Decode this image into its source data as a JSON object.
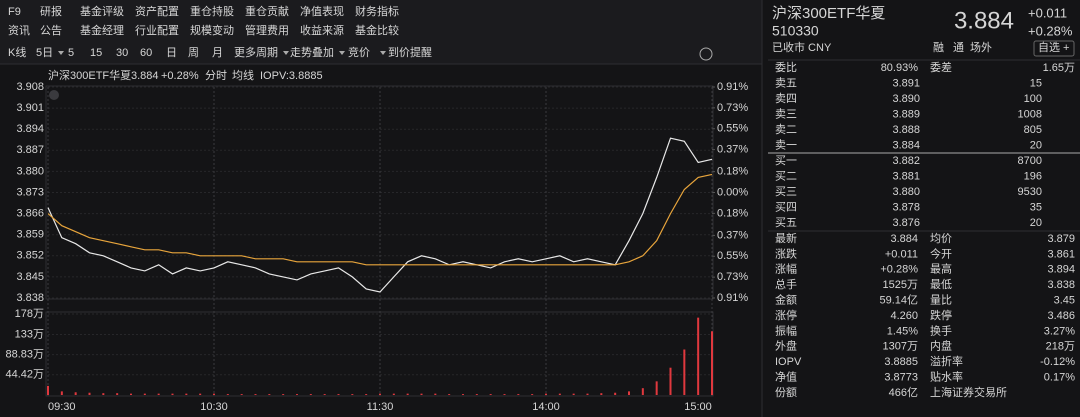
{
  "menu": {
    "row1": [
      "F9",
      "研报",
      "基金评级",
      "资产配置",
      "重仓持股",
      "重仓贡献",
      "净值表现",
      "财务指标"
    ],
    "row2": [
      "资讯",
      "公告",
      "基金经理",
      "行业配置",
      "规模变动",
      "管理费用",
      "收益来源",
      "基金比较"
    ]
  },
  "toolbar": [
    "K线",
    "5日",
    "5",
    "15",
    "30",
    "60",
    "日",
    "周",
    "月",
    "更多周期",
    "走势叠加",
    "竞价",
    "到价提醒"
  ],
  "chart_header": {
    "name": "沪深300ETF华夏",
    "price": "3.884",
    "change": "+0.28%",
    "mode": "分时",
    "iopv": "IOPV:3.8885"
  },
  "chart_data": [
    {
      "type": "line",
      "x": [
        0,
        5,
        10,
        15,
        20,
        25,
        30,
        35,
        40,
        45,
        50,
        55,
        60,
        65,
        70,
        75,
        80,
        85,
        90,
        95,
        100,
        105,
        110,
        115,
        120,
        125,
        130,
        135,
        140,
        145,
        150,
        155,
        160,
        165,
        170,
        175,
        180,
        185,
        190,
        195,
        200,
        205,
        210,
        215,
        220,
        225,
        230,
        235,
        240
      ],
      "xlim": [
        0,
        240
      ],
      "xticks": [
        {
          "value": 0,
          "label": "09:30"
        },
        {
          "value": 60,
          "label": "10:30"
        },
        {
          "value": 120,
          "label": "11:30"
        },
        {
          "value": 180,
          "label": "14:00"
        },
        {
          "value": 240,
          "label": "15:00"
        }
      ],
      "ylim": [
        3.838,
        3.908
      ],
      "yticks": [
        3.838,
        3.845,
        3.852,
        3.859,
        3.866,
        3.873,
        {
          "value": 3.88,
          "label": "3.880"
        },
        3.887,
        3.894,
        3.901,
        3.908
      ],
      "y2lim": [
        -0.91,
        0.91
      ],
      "y2ticks": [
        {
          "value": -0.91,
          "label": "0.91%"
        },
        {
          "value": -0.73,
          "label": "0.73%"
        },
        {
          "value": -0.55,
          "label": "0.55%"
        },
        {
          "value": -0.37,
          "label": "0.37%"
        },
        {
          "value": -0.18,
          "label": "0.18%"
        },
        {
          "value": 0,
          "label": "0.00%"
        },
        {
          "value": 0.18,
          "label": "0.18%"
        },
        {
          "value": 0.37,
          "label": "0.37%"
        },
        {
          "value": 0.55,
          "label": "0.55%"
        },
        {
          "value": 0.73,
          "label": "0.73%"
        },
        {
          "value": 0.91,
          "label": "0.91%"
        }
      ],
      "series": [
        {
          "color": "#e8e8e8",
          "values": [
            3.868,
            3.858,
            3.856,
            3.853,
            3.852,
            3.85,
            3.848,
            3.847,
            3.849,
            3.846,
            3.848,
            3.847,
            3.848,
            3.85,
            3.849,
            3.848,
            3.846,
            3.845,
            3.844,
            3.846,
            3.847,
            3.848,
            3.845,
            3.841,
            3.84,
            3.845,
            3.85,
            3.852,
            3.851,
            3.849,
            3.85,
            3.849,
            3.848,
            3.85,
            3.851,
            3.85,
            3.851,
            3.852,
            3.85,
            3.851,
            3.85,
            3.849,
            3.857,
            3.866,
            3.878,
            3.891,
            3.89,
            3.883,
            3.884
          ]
        },
        {
          "name": "均线",
          "color": "#e8a53c",
          "values": [
            3.866,
            3.862,
            3.86,
            3.858,
            3.857,
            3.856,
            3.855,
            3.854,
            3.854,
            3.853,
            3.853,
            3.852,
            3.852,
            3.852,
            3.852,
            3.851,
            3.851,
            3.851,
            3.85,
            3.85,
            3.85,
            3.85,
            3.85,
            3.849,
            3.849,
            3.849,
            3.849,
            3.849,
            3.849,
            3.849,
            3.849,
            3.849,
            3.849,
            3.849,
            3.849,
            3.849,
            3.849,
            3.849,
            3.849,
            3.849,
            3.849,
            3.849,
            3.85,
            3.852,
            3.857,
            3.866,
            3.874,
            3.878,
            3.879
          ]
        }
      ]
    },
    {
      "type": "bar",
      "x": [
        0,
        5,
        10,
        15,
        20,
        25,
        30,
        35,
        40,
        45,
        50,
        55,
        60,
        65,
        70,
        75,
        80,
        85,
        90,
        95,
        100,
        105,
        110,
        115,
        120,
        125,
        130,
        135,
        140,
        145,
        150,
        155,
        160,
        165,
        170,
        175,
        180,
        185,
        190,
        195,
        200,
        205,
        210,
        215,
        220,
        225,
        230,
        235,
        240
      ],
      "xlim": [
        0,
        240
      ],
      "ylim": [
        0,
        178
      ],
      "yticks": [
        {
          "value": 44.42,
          "label": "44.42万"
        },
        {
          "value": 88.83,
          "label": "88.83万"
        },
        {
          "value": 133,
          "label": "133万"
        },
        {
          "value": 178,
          "label": "178万"
        }
      ],
      "color": "#e0383e",
      "values": [
        20,
        8,
        6,
        5,
        4,
        4,
        3,
        3,
        3,
        3,
        3,
        3,
        3,
        2,
        2,
        2,
        2,
        2,
        2,
        2,
        2,
        2,
        2,
        2,
        3,
        3,
        3,
        3,
        3,
        2,
        2,
        2,
        2,
        2,
        2,
        2,
        3,
        3,
        3,
        3,
        4,
        5,
        8,
        15,
        30,
        60,
        100,
        170,
        140
      ]
    }
  ],
  "quote": {
    "name": "沪深300ETF华夏",
    "code": "510330",
    "status": "已收市 CNY",
    "price": "3.884",
    "change": "+0.011",
    "pct": "+0.28%",
    "tags": [
      "融",
      "通",
      "场外",
      "自选 +"
    ],
    "ratio": [
      "委比",
      "80.93%",
      "委差",
      "1.65万"
    ],
    "sells": [
      [
        "卖五",
        "3.891",
        "15"
      ],
      [
        "卖四",
        "3.890",
        "100"
      ],
      [
        "卖三",
        "3.889",
        "1008"
      ],
      [
        "卖二",
        "3.888",
        "805"
      ],
      [
        "卖一",
        "3.884",
        "20"
      ]
    ],
    "buys": [
      [
        "买一",
        "3.882",
        "8700"
      ],
      [
        "买二",
        "3.881",
        "196"
      ],
      [
        "买三",
        "3.880",
        "9530"
      ],
      [
        "买四",
        "3.878",
        "35"
      ],
      [
        "买五",
        "3.876",
        "20"
      ]
    ],
    "stats": [
      [
        "最新",
        "3.884",
        "均价",
        "3.879"
      ],
      [
        "涨跌",
        "+0.011",
        "今开",
        "3.861"
      ],
      [
        "涨幅",
        "+0.28%",
        "最高",
        "3.894"
      ],
      [
        "总手",
        "1525万",
        "最低",
        "3.838"
      ],
      [
        "金额",
        "59.14亿",
        "量比",
        "3.45"
      ],
      [
        "涨停",
        "4.260",
        "跌停",
        "3.486"
      ],
      [
        "振幅",
        "1.45%",
        "换手",
        "3.27%"
      ],
      [
        "外盘",
        "1307万",
        "内盘",
        "218万"
      ],
      [
        "IOPV",
        "3.8885",
        "溢折率",
        "-0.12%"
      ],
      [
        "净值",
        "3.8773",
        "贴水率",
        "0.17%"
      ],
      [
        "份额",
        "466亿",
        "上海证券交易所"
      ]
    ]
  }
}
